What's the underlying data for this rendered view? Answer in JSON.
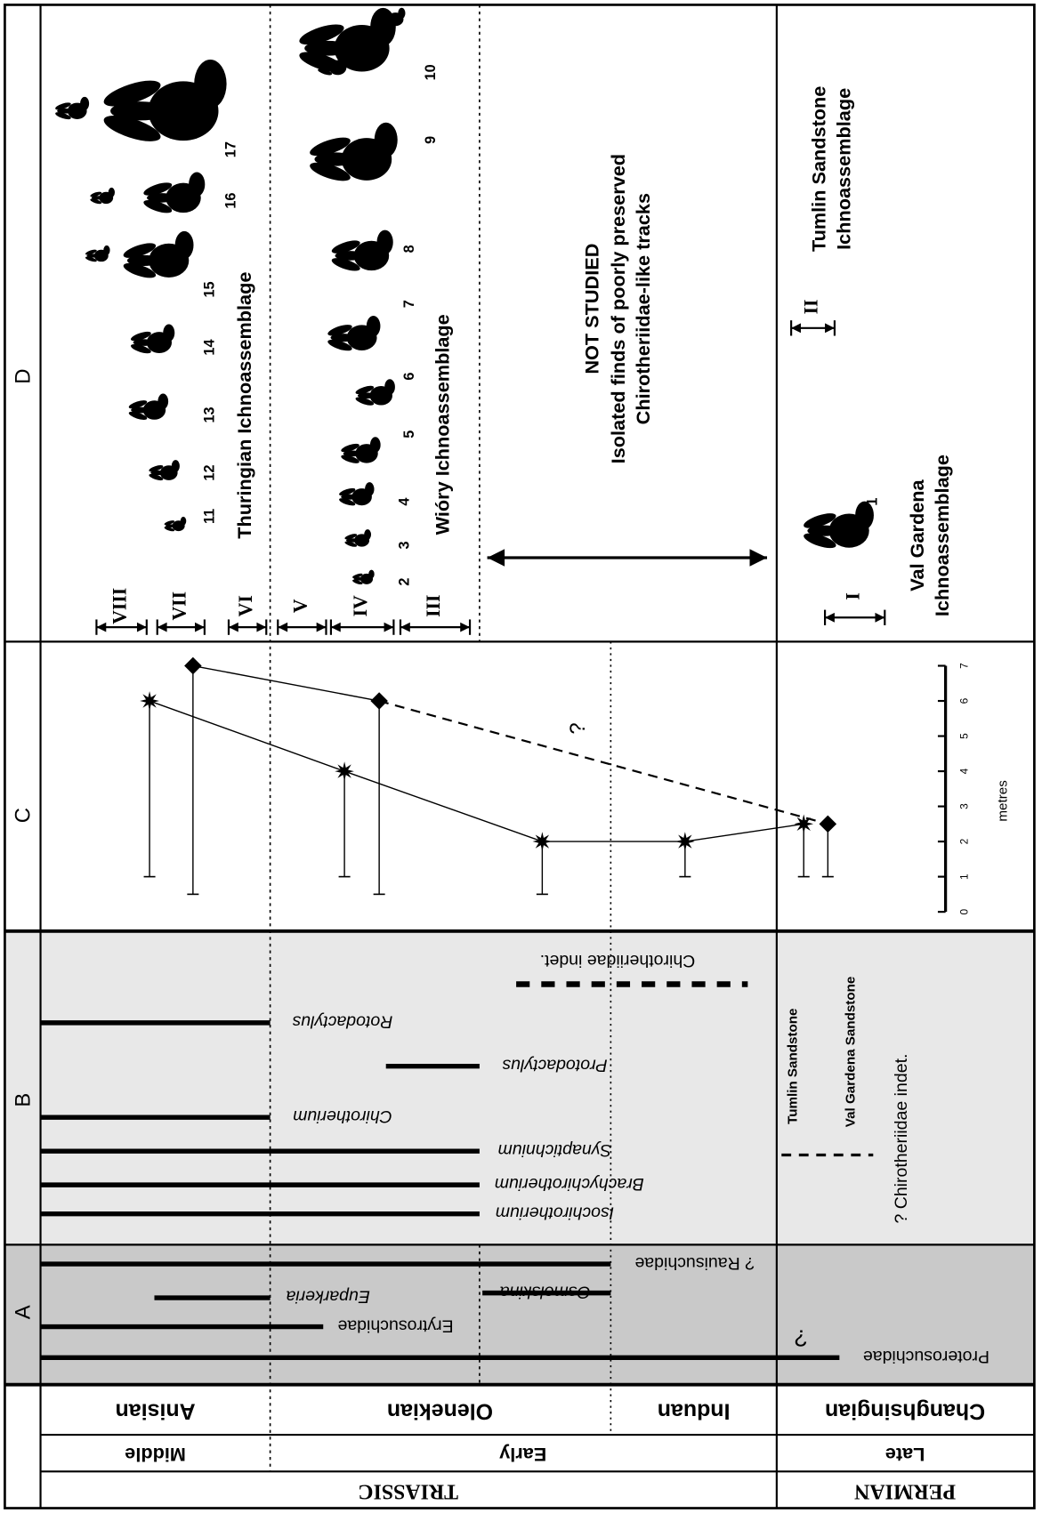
{
  "time_scale": {
    "eras": [
      "TRIASSIC",
      "PERMIAN"
    ],
    "epochs": [
      "Middle",
      "Early",
      "Late"
    ],
    "stages": [
      "Anisian",
      "Olenekian",
      "Induan",
      "Changhsingian"
    ]
  },
  "panel_a": {
    "label": "A",
    "taxa": [
      "Proterosuchidae",
      "Erytrosuchidae",
      "Euparkeria",
      "Osmolskina",
      "? Rauisuchidae"
    ],
    "uncertain_mark": "?"
  },
  "panel_b": {
    "label": "B",
    "ichnotaxa": [
      "Isochirotherium",
      "Brachychirotherium",
      "Synaptichnium",
      "Chirotherium",
      "Protodactylus",
      "Rotodactylus"
    ],
    "indeterminate": "Chirotheriidae indet.",
    "legend": [
      "Tumlin Sandstone",
      "Val Gardena Sandstone",
      "? Chirotheriidae indet."
    ]
  },
  "panel_c": {
    "label": "C",
    "axis_title": "metres",
    "ylim": [
      0,
      7
    ],
    "yticks": [
      0,
      1,
      2,
      3,
      4,
      5,
      6,
      7
    ],
    "stars": [
      {
        "top": 6,
        "base": 1
      },
      {
        "top": 4,
        "base": 1
      },
      {
        "top": 2,
        "base": 0.5
      },
      {
        "top": 2,
        "base": 1
      },
      {
        "top": 2.5,
        "base": 1
      }
    ],
    "diamonds": [
      {
        "top": 7,
        "base": 0.5
      },
      {
        "top": 6,
        "base": 0.5
      },
      {
        "top": 2.5,
        "base": 1
      }
    ],
    "question_mark": "?"
  },
  "panel_d": {
    "label": "D",
    "intervals": [
      "VIII",
      "VII",
      "VI",
      "V",
      "IV",
      "III",
      "II",
      "I"
    ],
    "track_numbers": [
      "1",
      "2",
      "3",
      "4",
      "5",
      "6",
      "7",
      "8",
      "9",
      "10",
      "11",
      "12",
      "13",
      "14",
      "15",
      "16",
      "17"
    ],
    "assemblages": [
      "Thuringian Ichnoassemblage",
      "Wióry Ichnoassemblage"
    ],
    "not_studied": [
      "NOT STUDIED",
      "Isolated finds of poorly preserved",
      "Chirotheriidae-like tracks"
    ],
    "val_gardena": [
      "Val Gardena",
      "Ichnoassemblage"
    ],
    "tumlin": [
      "Tumlin Sandstone",
      "Ichnoassemblage"
    ]
  }
}
